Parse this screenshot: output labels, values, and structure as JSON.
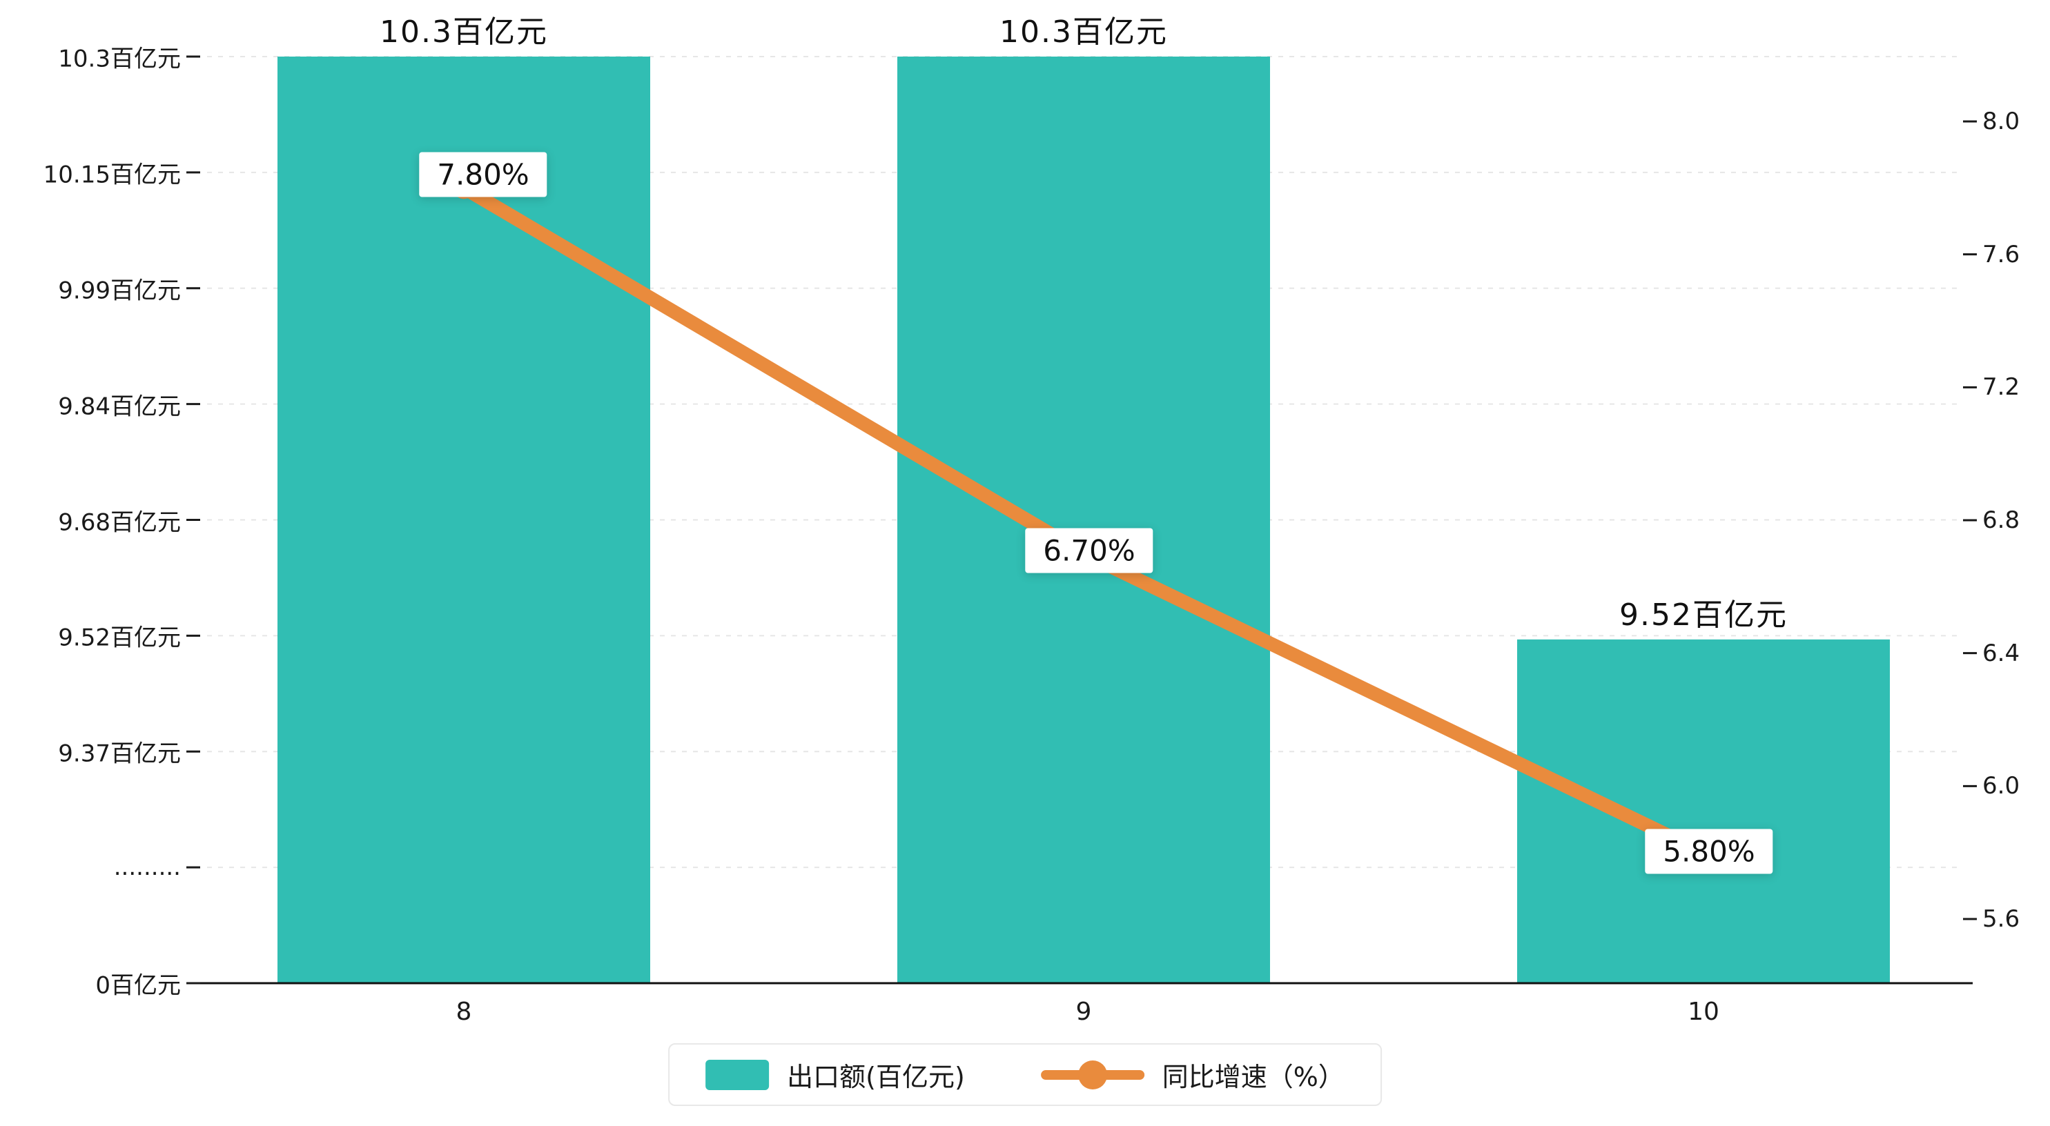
{
  "chart_data": {
    "type": "bar",
    "combo": "bar+line",
    "title": "",
    "categories": [
      "8",
      "9",
      "10"
    ],
    "series": [
      {
        "name": "出口额(百亿元)",
        "type": "bar",
        "axis": "left",
        "color": "#31beb3",
        "values": [
          10.3,
          10.3,
          9.52
        ],
        "data_labels": [
          "10.3百亿元",
          "10.3百亿元",
          "9.52百亿元"
        ]
      },
      {
        "name": "同比增速（%）",
        "type": "line",
        "axis": "right",
        "color": "#e98b3d",
        "values": [
          7.8,
          6.7,
          5.8
        ],
        "data_labels": [
          "7.80%",
          "6.70%",
          "5.80%"
        ]
      }
    ],
    "left_axis": {
      "broken": true,
      "unit": "百亿元",
      "tick_values": [
        0,
        null,
        9.37,
        9.52,
        9.68,
        9.84,
        9.99,
        10.15,
        10.3
      ],
      "tick_labels": [
        "0百亿元",
        ".........",
        "9.37百亿元",
        "9.52百亿元",
        "9.68百亿元",
        "9.84百亿元",
        "9.99百亿元",
        "10.15百亿元",
        "10.3百亿元"
      ]
    },
    "right_axis": {
      "min": 5.6,
      "max": 8.0,
      "tick_values": [
        5.6,
        6.0,
        6.4,
        6.8,
        7.2,
        7.6,
        8.0
      ],
      "tick_labels": [
        "5.6",
        "6.0",
        "6.4",
        "6.8",
        "7.2",
        "7.6",
        "8.0"
      ]
    },
    "grid": "dashed-horizontal",
    "legend_position": "bottom-center",
    "legend": {
      "items": [
        {
          "label": "出口额(百亿元)",
          "marker": "bar-swatch",
          "color": "#31beb3"
        },
        {
          "label": "同比增速（%）",
          "marker": "line-dot",
          "color": "#e98b3d"
        }
      ]
    }
  }
}
